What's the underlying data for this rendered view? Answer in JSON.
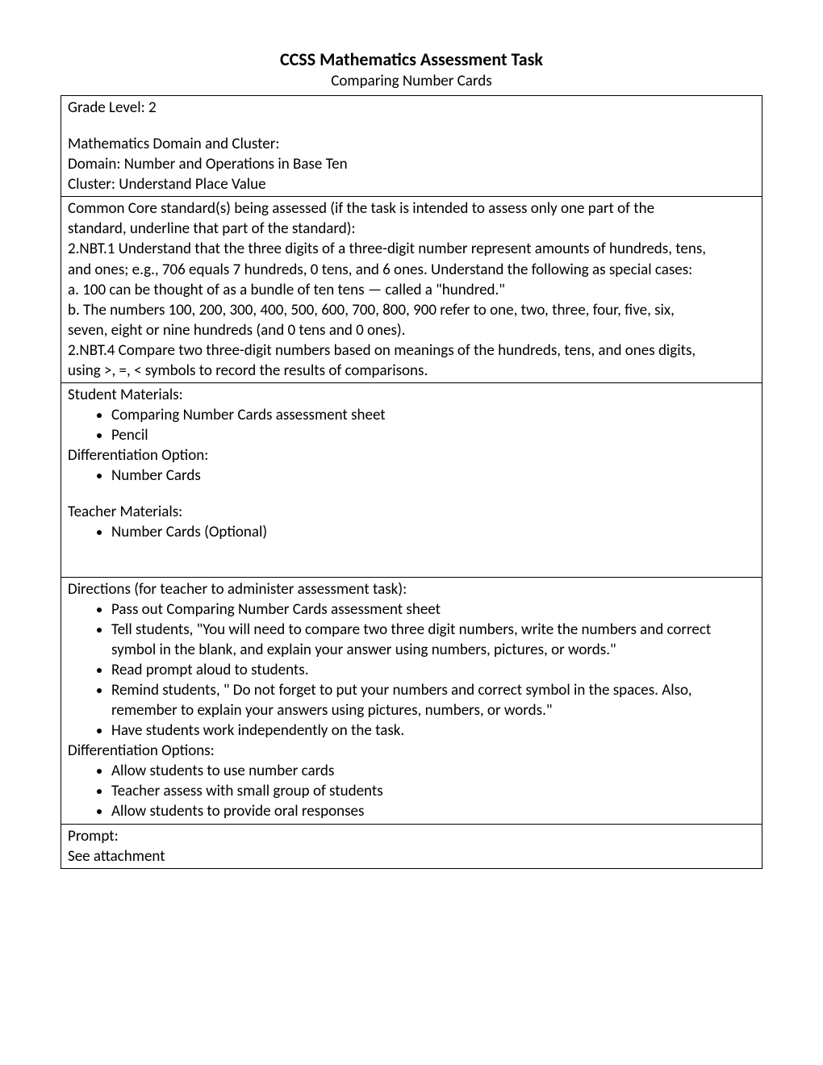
{
  "header": {
    "title": "CCSS Mathematics Assessment Task",
    "subtitle": "Comparing Number Cards"
  },
  "rows": {
    "grade": {
      "line1": "Grade Level:  2"
    },
    "domain_cluster": {
      "line1": "Mathematics Domain and Cluster:",
      "line2": "Domain:  Number and Operations in Base Ten",
      "line3": "Cluster:  Understand Place Value"
    },
    "standards": {
      "intro1": "Common Core standard(s) being assessed (if the task is intended to assess only one part of the",
      "intro2": "standard, underline that part of the standard):",
      "s1a": "2.NBT.1 Understand that the three digits of a three-digit number represent amounts of hundreds, tens,",
      "s1b": "and ones; e.g., 706 equals 7 hundreds, 0 tens, and 6 ones. Understand the following as special cases:",
      "s1c": "a. 100 can be thought of as a bundle of ten tens — called a \"hundred.\"",
      "s1d": "b. The numbers 100, 200, 300, 400, 500, 600, 700, 800, 900 refer to one, two, three, four, five, six,",
      "s1e": "seven, eight or nine hundreds (and 0 tens and 0 ones).",
      "s2a": "2.NBT.4  Compare two three-digit numbers based on meanings of the hundreds, tens, and ones digits,",
      "s2b": "using >, =, < symbols to record the results of comparisons."
    },
    "materials": {
      "student_heading": "Student Materials:",
      "student_items": {
        "0": "Comparing Number Cards assessment sheet",
        "1": "Pencil"
      },
      "diff_heading": "Differentiation Option:",
      "diff_items": {
        "0": "Number Cards"
      },
      "teacher_heading": "Teacher Materials:",
      "teacher_items": {
        "0": "Number Cards (Optional)"
      }
    },
    "directions": {
      "heading": "Directions (for teacher to administer assessment task):",
      "items": {
        "0": "Pass out Comparing Number Cards assessment sheet",
        "1": "Tell students, \"You will need to compare two three digit numbers, write the numbers and correct symbol in the blank, and explain your answer using numbers, pictures, or words.\"",
        "2": "Read prompt aloud to students.",
        "3": "Remind students, \" Do not forget to put your numbers and correct symbol in the spaces.  Also, remember to explain your answers using pictures, numbers, or words.\"",
        "4": "Have students work independently on the task."
      },
      "diff_heading": "Differentiation Options:",
      "diff_items": {
        "0": "Allow students to use number cards",
        "1": "Teacher assess with small group of students",
        "2": "Allow students to provide oral responses"
      }
    },
    "prompt": {
      "line1": "Prompt:",
      "line2": "See attachment"
    }
  }
}
